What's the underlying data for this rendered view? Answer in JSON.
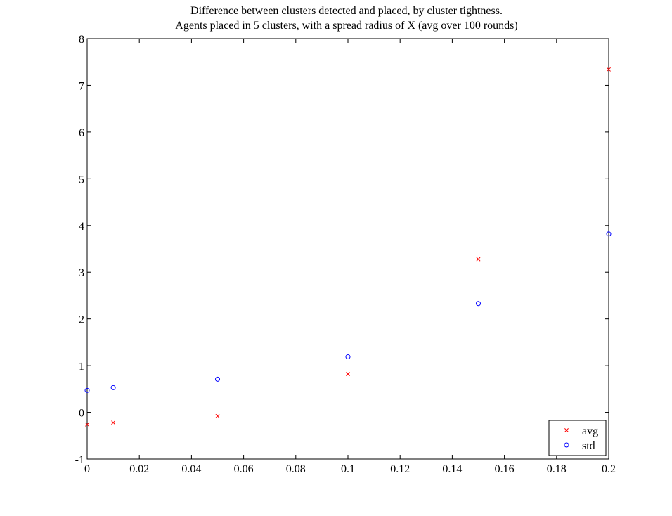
{
  "chart_data": {
    "type": "scatter",
    "title": [
      "Difference between clusters detected and placed, by cluster tightness.",
      "Agents placed in 5 clusters, with a spread radius of X (avg over 100 rounds)"
    ],
    "xlabel": "",
    "ylabel": "",
    "xlim": [
      0,
      0.2
    ],
    "ylim": [
      -1,
      8
    ],
    "x_ticks": [
      0,
      0.02,
      0.04,
      0.06,
      0.08,
      0.1,
      0.12,
      0.14,
      0.16,
      0.18,
      0.2
    ],
    "x_tick_labels": [
      "0",
      "0.02",
      "0.04",
      "0.06",
      "0.08",
      "0.1",
      "0.12",
      "0.14",
      "0.16",
      "0.18",
      "0.2"
    ],
    "y_ticks": [
      -1,
      0,
      1,
      2,
      3,
      4,
      5,
      6,
      7,
      8
    ],
    "y_tick_labels": [
      "-1",
      "0",
      "1",
      "2",
      "3",
      "4",
      "5",
      "6",
      "7",
      "8"
    ],
    "grid": false,
    "legend_position": "bottom-right",
    "series": [
      {
        "name": "avg",
        "marker": "x",
        "color": "#ff0000",
        "x": [
          0,
          0.01,
          0.05,
          0.1,
          0.15,
          0.2
        ],
        "y": [
          -0.26,
          -0.22,
          -0.08,
          0.82,
          3.28,
          7.34
        ]
      },
      {
        "name": "std",
        "marker": "o",
        "color": "#0000ff",
        "x": [
          0,
          0.01,
          0.05,
          0.1,
          0.15,
          0.2
        ],
        "y": [
          0.47,
          0.53,
          0.71,
          1.19,
          2.33,
          3.82
        ]
      }
    ]
  }
}
